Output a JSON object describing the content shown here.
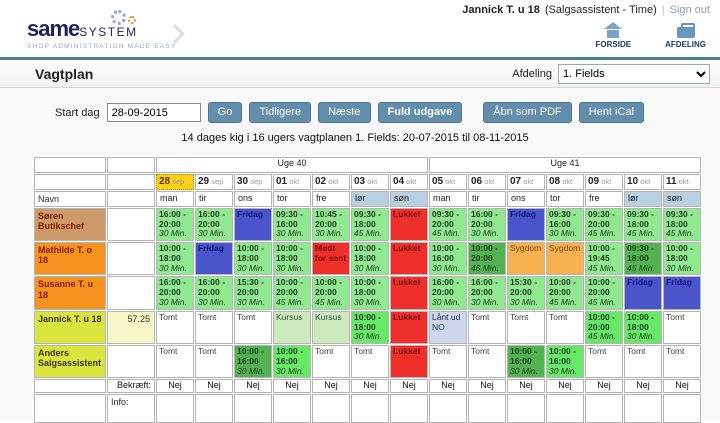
{
  "user_bar": {
    "user_name": "Jannick T. u 18",
    "user_role": "(Salgsassistent - Time)",
    "separator": "|",
    "sign_out": "Sign out"
  },
  "header": {
    "logo_main": "same",
    "logo_sub": "SYSTEM",
    "tagline": "SHOP ADMINISTRATION MADE EASY",
    "nav": [
      {
        "label": "FORSIDE",
        "icon": "home-icon"
      },
      {
        "label": "AFDELING",
        "icon": "briefcase-icon"
      }
    ]
  },
  "page": {
    "title": "Vagtplan",
    "afdeling_label": "Afdeling",
    "afdeling_value": "1. Fields"
  },
  "controls": {
    "start_label": "Start dag",
    "start_value": "28-09-2015",
    "go": "Go",
    "tidligere": "Tidligere",
    "naeste": "Næste",
    "fuld_udgave": "Fuld udgave",
    "pdf": "Åbn som PDF",
    "ical": "Hent iCal",
    "subtitle": "14 dages kig i 16 ugers vagtplanen 1. Fields: 20-07-2015 til 08-11-2015"
  },
  "icons": {
    "scroll_left": "‹",
    "scroll_right": "›"
  },
  "colors": {
    "accent_blue_border": "#4e7ca4",
    "button_blue": "#628eab",
    "green": "#90e890",
    "dark_green": "#53b353",
    "bright_green": "#67e967",
    "fridag_blue": "#4a55cb",
    "lukket_red": "#ee2f2a",
    "sygdom_orange": "#f7b150",
    "kursus_green": "#cdeabc",
    "laant_blue": "#cdd6ec",
    "name_tan": "#cf9a6a",
    "name_orange": "#f6921e",
    "name_yellow": "#dae53e",
    "hours_khaki": "#dedcc3",
    "hours_yellow": "#f6f6c6",
    "today_yellow": "#fdd017",
    "weekend_blue": "#b9cfe2",
    "week_header_blue": "#d3e1ed",
    "confirm_gray": "#b2b2b2"
  },
  "schedule": {
    "weeks": [
      {
        "label": "Uge 40",
        "span": 7
      },
      {
        "label": "Uge 41",
        "span": 7
      }
    ],
    "navn_label": "Navn",
    "days": [
      {
        "num": "28",
        "mon": "sep",
        "day": "man",
        "today": true
      },
      {
        "num": "29",
        "mon": "sep",
        "day": "tir"
      },
      {
        "num": "30",
        "mon": "sep",
        "day": "ons"
      },
      {
        "num": "01",
        "mon": "okt",
        "day": "tor"
      },
      {
        "num": "02",
        "mon": "okt",
        "day": "fre"
      },
      {
        "num": "03",
        "mon": "okt",
        "day": "lør",
        "weekend": true
      },
      {
        "num": "04",
        "mon": "okt",
        "day": "søn",
        "weekend": true
      },
      {
        "num": "05",
        "mon": "okt",
        "day": "man"
      },
      {
        "num": "06",
        "mon": "okt",
        "day": "tir"
      },
      {
        "num": "07",
        "mon": "okt",
        "day": "ons"
      },
      {
        "num": "08",
        "mon": "okt",
        "day": "tor"
      },
      {
        "num": "09",
        "mon": "okt",
        "day": "fre"
      },
      {
        "num": "10",
        "mon": "okt",
        "day": "lør",
        "weekend": true
      },
      {
        "num": "11",
        "mon": "okt",
        "day": "søn",
        "weekend": true
      }
    ],
    "rows": [
      {
        "name": "Søren Butikschef",
        "hours": "",
        "name_class": "tan",
        "cells": [
          {
            "k": "g",
            "t": "16:00 - 20:00",
            "b": "30 Min."
          },
          {
            "k": "g",
            "t": "16:00 - 20:00",
            "b": "30 Min."
          },
          {
            "k": "fridag",
            "l": "Fridag"
          },
          {
            "k": "g",
            "t": "09:30 - 16:00",
            "b": "30 Min."
          },
          {
            "k": "g",
            "t": "10:45 - 20:00",
            "b": "30 Min."
          },
          {
            "k": "g",
            "t": "09:30 - 18:00",
            "b": "45 Min."
          },
          {
            "k": "lukket",
            "l": "Lukket"
          },
          {
            "k": "g",
            "t": "09:30 - 20:00",
            "b": "45 Min."
          },
          {
            "k": "g",
            "t": "16:00 - 20:00",
            "b": "30 Min."
          },
          {
            "k": "fridag",
            "l": "Fridag"
          },
          {
            "k": "g",
            "t": "09:30 - 16:00",
            "b": "30 Min."
          },
          {
            "k": "g",
            "t": "09:30 - 20:00",
            "b": "45 Min."
          },
          {
            "k": "g",
            "t": "09:30 - 18:00",
            "b": "45 Min."
          },
          {
            "k": "g",
            "t": "09:30 - 18:00",
            "b": "45 Min."
          }
        ]
      },
      {
        "name": "Mathilde T. o 18",
        "hours": "",
        "name_class": "orange",
        "cells": [
          {
            "k": "g",
            "t": "10:00 - 18:00",
            "b": "30 Min."
          },
          {
            "k": "fridag",
            "l": "Fridag"
          },
          {
            "k": "g",
            "t": "10:00 - 18:00",
            "b": "30 Min."
          },
          {
            "k": "g",
            "t": "10:00 - 18:00",
            "b": "30 Min."
          },
          {
            "k": "sent",
            "l": "Mødt for sent"
          },
          {
            "k": "g",
            "t": "10:00 - 18:00",
            "b": "30 Min."
          },
          {
            "k": "lukket",
            "l": "Lukket"
          },
          {
            "k": "g",
            "t": "10:00 - 16:00",
            "b": "30 Min."
          },
          {
            "k": "dg",
            "t": "10:00 - 20:00",
            "b": "45 Min."
          },
          {
            "k": "sygdom",
            "l": "Sygdom"
          },
          {
            "k": "sygdom",
            "l": "Sygdom"
          },
          {
            "k": "g",
            "t": "10:00 - 19:45",
            "b": "45 Min."
          },
          {
            "k": "dg",
            "t": "09:30 - 18:00",
            "b": "45 Min."
          },
          {
            "k": "g",
            "t": "10:00 - 18:00",
            "b": "30 Min."
          }
        ]
      },
      {
        "name": "Susanne T. u 18",
        "hours": "",
        "name_class": "orange",
        "cells": [
          {
            "k": "g",
            "t": "16:00 - 20:00",
            "b": "30 Min."
          },
          {
            "k": "g",
            "t": "16:00 - 20:00",
            "b": "30 Min."
          },
          {
            "k": "g",
            "t": "15:30 - 20:00",
            "b": "30 Min."
          },
          {
            "k": "g",
            "t": "10:00 - 20:00",
            "b": "45 Min."
          },
          {
            "k": "g",
            "t": "10:00 - 20:00",
            "b": "45 Min."
          },
          {
            "k": "g",
            "t": "10:00 - 18:00",
            "b": "30 Min."
          },
          {
            "k": "lukket",
            "l": "Lukket"
          },
          {
            "k": "g",
            "t": "16:00 - 20:00",
            "b": "30 Min."
          },
          {
            "k": "g",
            "t": "16:00 - 20:00",
            "b": "30 Min."
          },
          {
            "k": "g",
            "t": "15:30 - 20:00",
            "b": "30 Min."
          },
          {
            "k": "g",
            "t": "10:00 - 20:00",
            "b": "45 Min."
          },
          {
            "k": "g",
            "t": "10:00 - 20:00",
            "b": "45 Min."
          },
          {
            "k": "fridag",
            "l": "Fridag"
          },
          {
            "k": "fridag",
            "l": "Fridag"
          }
        ]
      },
      {
        "name": "Jannick T. u 18",
        "hours": "57.25",
        "name_class": "yellow",
        "cells": [
          {
            "k": "tomt",
            "l": "Tomt"
          },
          {
            "k": "tomt",
            "l": "Tomt"
          },
          {
            "k": "tomt",
            "l": "Tomt"
          },
          {
            "k": "kursus",
            "l": "Kursus"
          },
          {
            "k": "kursus",
            "l": "Kursus"
          },
          {
            "k": "bg",
            "t": "10:00 - 18:00",
            "b": "30 Min."
          },
          {
            "k": "lukket",
            "l": "Lukket"
          },
          {
            "k": "laant",
            "l": "Lånt ud NO"
          },
          {
            "k": "tomt",
            "l": "Tomt"
          },
          {
            "k": "tomt",
            "l": "Tomt"
          },
          {
            "k": "tomt",
            "l": "Tomt"
          },
          {
            "k": "bg",
            "t": "10:00 - 20:00",
            "b": "45 Min."
          },
          {
            "k": "bg",
            "t": "10:00 - 18:00",
            "b": "30 Min."
          },
          {
            "k": "tomt",
            "l": "Tomt"
          }
        ]
      },
      {
        "name": "Anders Salgsassistent",
        "hours": "",
        "name_class": "yellow",
        "cells": [
          {
            "k": "tomt",
            "l": "Tomt"
          },
          {
            "k": "tomt",
            "l": "Tomt"
          },
          {
            "k": "dg",
            "t": "10:00 - 16:00",
            "b": "30 Min."
          },
          {
            "k": "bg",
            "t": "10:00 - 16:00",
            "b": "30 Min."
          },
          {
            "k": "tomt",
            "l": "Tomt"
          },
          {
            "k": "tomt",
            "l": "Tomt"
          },
          {
            "k": "lukket",
            "l": "Lukket"
          },
          {
            "k": "tomt",
            "l": "Tomt"
          },
          {
            "k": "tomt",
            "l": "Tomt"
          },
          {
            "k": "dg",
            "t": "10:00 - 16:00",
            "b": "30 Min."
          },
          {
            "k": "bg",
            "t": "10:00 - 16:00",
            "b": "30 Min."
          },
          {
            "k": "tomt",
            "l": "Tomt"
          },
          {
            "k": "tomt",
            "l": "Tomt"
          },
          {
            "k": "tomt",
            "l": "Tomt"
          }
        ]
      }
    ],
    "bekraeft_label": "Bekræft:",
    "bekraeft": [
      "Nej",
      "Nej",
      "Nej",
      "Nej",
      "Nej",
      "Nej",
      "Nej",
      "Nej",
      "Nej",
      "Nej",
      "Nej",
      "Nej",
      "Nej",
      "Nej"
    ],
    "info_label": "Info:"
  }
}
